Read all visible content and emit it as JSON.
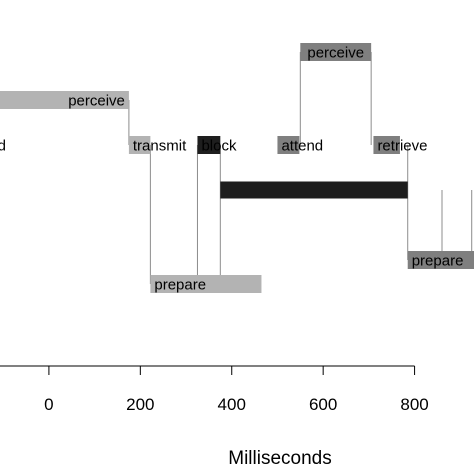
{
  "chart_data": {
    "type": "gantt",
    "xlabel": "Milliseconds",
    "xlim": [
      -107,
      930
    ],
    "x_ticks": [
      0,
      200,
      400,
      600,
      800
    ],
    "x_tick_labels": [
      "0",
      "200",
      "400",
      "600",
      "800"
    ],
    "colors": {
      "light": "#b3b3b3",
      "medium": "#7f7f7f",
      "dark": "#1e1e1e",
      "connector": "#8c8c8c",
      "axis": "#000000"
    },
    "rows": [
      {
        "name": "top"
      },
      {
        "name": "upper"
      },
      {
        "name": "middle"
      },
      {
        "name": "center"
      },
      {
        "name": "lower-right"
      },
      {
        "name": "bottom"
      }
    ],
    "operations": [
      {
        "label": "perceive",
        "row": 0,
        "start": 550,
        "end": 705,
        "shade": "medium",
        "label_pos": "inside"
      },
      {
        "label": "perceive",
        "row": 1,
        "start": -110,
        "end": 175,
        "shade": "light",
        "label_pos": "inside-right"
      },
      {
        "label": "d",
        "row": 2,
        "start": -110,
        "end": -106,
        "shade": "none",
        "label_pos": "left"
      },
      {
        "label": "transmit",
        "row": 2,
        "start": 175,
        "end": 222,
        "shade": "light",
        "label_pos": "inside-left"
      },
      {
        "label": "block",
        "row": 2,
        "start": 325,
        "end": 375,
        "shade": "dark",
        "label_pos": "inside-left"
      },
      {
        "label": "attend",
        "row": 2,
        "start": 500,
        "end": 548,
        "shade": "medium",
        "label_pos": "inside-left"
      },
      {
        "label": "retrieve",
        "row": 2,
        "start": 710,
        "end": 768,
        "shade": "medium",
        "label_pos": "inside-left"
      },
      {
        "label": "",
        "row": 3,
        "start": 375,
        "end": 785,
        "shade": "dark",
        "label_pos": "none"
      },
      {
        "label": "prepare",
        "row": 4,
        "start": 785,
        "end": 940,
        "shade": "medium",
        "label_pos": "inside-left"
      },
      {
        "label": "prepare",
        "row": 5,
        "start": 222,
        "end": 465,
        "shade": "light",
        "label_pos": "inside-left"
      }
    ],
    "connectors": [
      {
        "x": 175,
        "from_row": 1,
        "to_row": 2
      },
      {
        "x": 222,
        "from_row": 2,
        "to_row": 5
      },
      {
        "x": 325,
        "from_row": 2,
        "to_row": 5
      },
      {
        "x": 375,
        "from_row": 2,
        "to_row": 5
      },
      {
        "x": 550,
        "from_row": 0,
        "to_row": 2
      },
      {
        "x": 705,
        "from_row": 0,
        "to_row": 2
      },
      {
        "x": 785,
        "from_row": 2,
        "to_row": 4
      },
      {
        "x": 860,
        "from_row": 3,
        "to_row": 4
      },
      {
        "x": 925,
        "from_row": 3,
        "to_row": 4
      }
    ]
  }
}
